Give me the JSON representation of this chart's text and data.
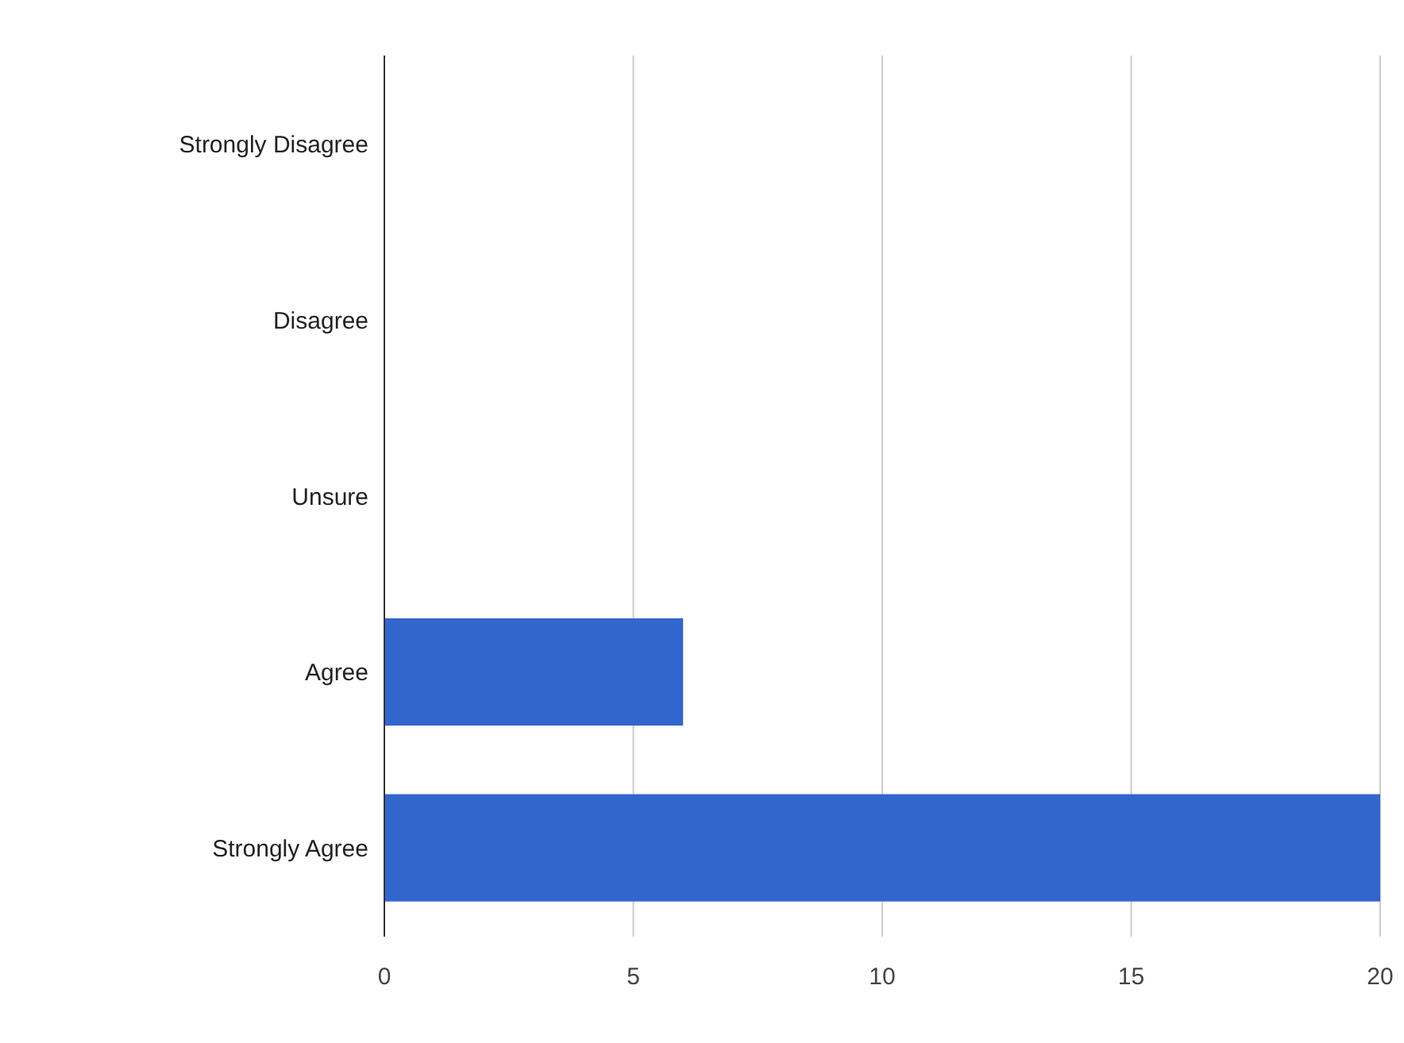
{
  "chart_data": {
    "type": "bar",
    "orientation": "horizontal",
    "categories": [
      "Strongly Disagree",
      "Disagree",
      "Unsure",
      "Agree",
      "Strongly Agree"
    ],
    "values": [
      0,
      0,
      0,
      6,
      20
    ],
    "color": "#3366cc",
    "xlim": [
      0,
      20
    ],
    "xticks": [
      0,
      5,
      10,
      15,
      20
    ],
    "grid": "x"
  }
}
